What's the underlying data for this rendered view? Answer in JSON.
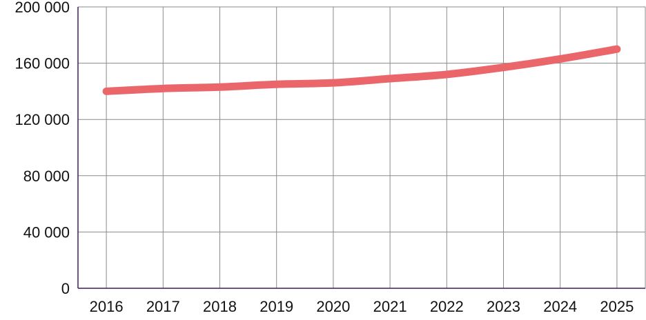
{
  "chart_data": {
    "type": "line",
    "categories": [
      "2016",
      "2017",
      "2018",
      "2019",
      "2020",
      "2021",
      "2022",
      "2023",
      "2024",
      "2025"
    ],
    "series": [
      {
        "values": [
          140000,
          142000,
          143000,
          145000,
          146000,
          149000,
          152000,
          157000,
          163000,
          170000
        ],
        "color": "#ea666b"
      }
    ],
    "ylim": [
      0,
      200000
    ],
    "yticks": [
      0,
      40000,
      80000,
      120000,
      160000,
      200000
    ],
    "ytick_labels": [
      "0",
      "40 000",
      "80 000",
      "120 000",
      "160 000",
      "200 000"
    ],
    "grid": true,
    "axis_color": "#3b1e54",
    "grid_color": "#8a8a8a",
    "title": "",
    "xlabel": "",
    "ylabel": ""
  }
}
